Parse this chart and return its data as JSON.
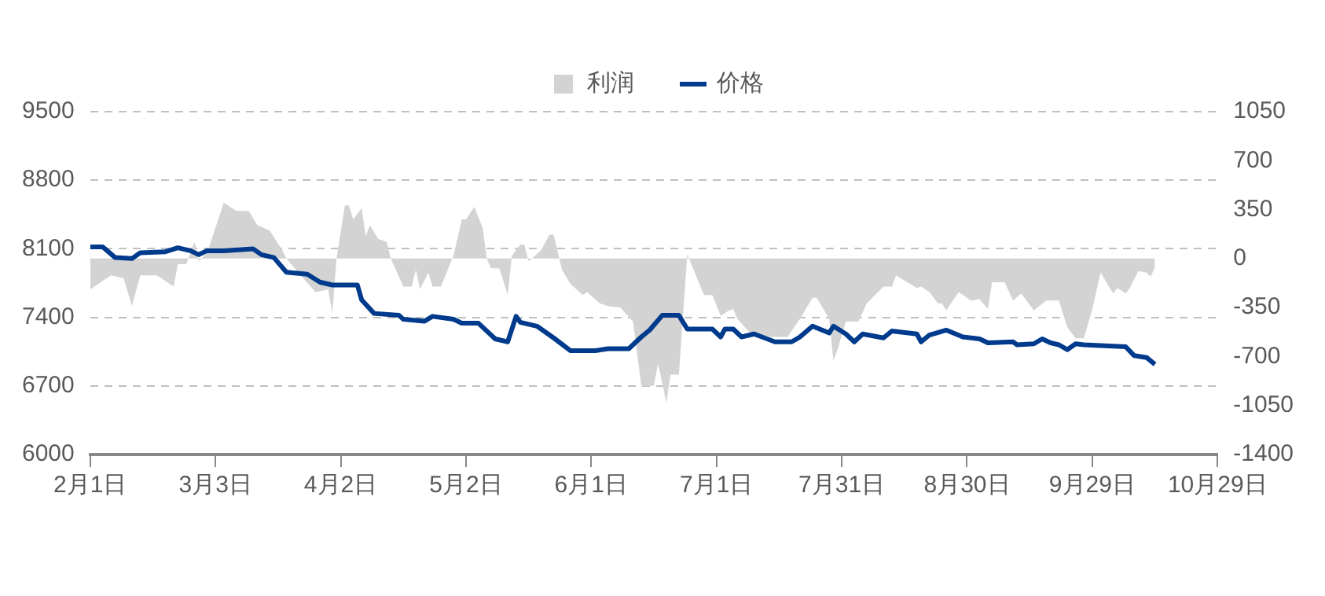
{
  "chart_data": {
    "type": "line",
    "legend": "top",
    "grid": "y",
    "marker": "none",
    "line_style": "solid",
    "xlim": [
      "--02-01",
      "--10-29"
    ],
    "xticks": [
      {
        "value": "--02-01",
        "label": "2月1日"
      },
      {
        "value": "--03-03",
        "label": "3月3日"
      },
      {
        "value": "--04-02",
        "label": "4月2日"
      },
      {
        "value": "--05-02",
        "label": "5月2日"
      },
      {
        "value": "--06-01",
        "label": "6月1日"
      },
      {
        "value": "--07-01",
        "label": "7月1日"
      },
      {
        "value": "--07-31",
        "label": "7月31日"
      },
      {
        "value": "--08-30",
        "label": "8月30日"
      },
      {
        "value": "--09-29",
        "label": "9月29日"
      },
      {
        "value": "--10-29",
        "label": "10月29日"
      }
    ],
    "ylim": [
      6000,
      9500
    ],
    "yticks": [
      6000,
      6700,
      7400,
      8100,
      8800,
      9500
    ],
    "y2lim": [
      -1400,
      1050
    ],
    "y2ticks": [
      -1400,
      -1050,
      -700,
      -350,
      0,
      350,
      700,
      1050
    ],
    "series": [
      {
        "name": "利润",
        "type": "area",
        "axis": "y2",
        "color": "#d3d3d3",
        "x": [
          "--02-01",
          "--02-02",
          "--02-04",
          "--02-06",
          "--02-09",
          "--02-11",
          "--02-13",
          "--02-17",
          "--02-21",
          "--02-22",
          "--02-24",
          "--02-26",
          "--02-27",
          "--03-01",
          "--03-03",
          "--03-05",
          "--03-08",
          "--03-11",
          "--03-13",
          "--03-16",
          "--03-19",
          "--03-20",
          "--03-24",
          "--03-27",
          "--03-30",
          "--03-31",
          "--04-01",
          "--04-03",
          "--04-04",
          "--04-05",
          "--04-07",
          "--04-08",
          "--04-09",
          "--04-11",
          "--04-13",
          "--04-14",
          "--04-17",
          "--04-19",
          "--04-20",
          "--04-21",
          "--04-23",
          "--04-24",
          "--04-26",
          "--04-29",
          "--05-01",
          "--05-02",
          "--05-04",
          "--05-06",
          "--05-07",
          "--05-08",
          "--05-10",
          "--05-12",
          "--05-13",
          "--05-15",
          "--05-16",
          "--05-17",
          "--05-20",
          "--05-22",
          "--05-23",
          "--05-25",
          "--05-27",
          "--05-30",
          "--05-31",
          "--06-03",
          "--06-05",
          "--06-08",
          "--06-11",
          "--06-13",
          "--06-16",
          "--06-17",
          "--06-19",
          "--06-20",
          "--06-22",
          "--06-24",
          "--06-28",
          "--06-30",
          "--07-02",
          "--07-04",
          "--07-05",
          "--07-06",
          "--07-09",
          "--07-14",
          "--07-18",
          "--07-21",
          "--07-24",
          "--07-25",
          "--07-28",
          "--07-29",
          "--07-30",
          "--08-01",
          "--08-04",
          "--08-06",
          "--08-10",
          "--08-12",
          "--08-13",
          "--08-18",
          "--08-19",
          "--08-21",
          "--08-23",
          "--08-24",
          "--08-25",
          "--08-28",
          "--08-31",
          "--09-02",
          "--09-04",
          "--09-05",
          "--09-08",
          "--09-10",
          "--09-12",
          "--09-15",
          "--09-18",
          "--09-21",
          "--09-23",
          "--09-25",
          "--09-27",
          "--09-29",
          "--10-01",
          "--10-04",
          "--10-05",
          "--10-07",
          "--10-08",
          "--10-10",
          "--10-12",
          "--10-13",
          "--10-14"
        ],
        "values": [
          -220,
          -200,
          -160,
          -120,
          -140,
          -340,
          -120,
          -120,
          -200,
          -40,
          -40,
          120,
          -20,
          40,
          220,
          400,
          340,
          340,
          240,
          200,
          60,
          0,
          -140,
          -240,
          -220,
          -390,
          0,
          380,
          380,
          280,
          360,
          160,
          240,
          140,
          120,
          0,
          -200,
          -200,
          -80,
          -220,
          -100,
          -200,
          -200,
          20,
          280,
          280,
          370,
          220,
          0,
          -70,
          -70,
          -260,
          20,
          100,
          100,
          -20,
          60,
          170,
          170,
          -80,
          -180,
          -260,
          -240,
          -320,
          -340,
          -350,
          -450,
          -910,
          -910,
          -750,
          -1030,
          -830,
          -830,
          30,
          -260,
          -260,
          -410,
          -370,
          -360,
          -430,
          -530,
          -560,
          -560,
          -430,
          -280,
          -280,
          -430,
          -730,
          -650,
          -450,
          -450,
          -320,
          -200,
          -200,
          -120,
          -210,
          -200,
          -240,
          -320,
          -320,
          -370,
          -240,
          -300,
          -290,
          -360,
          -170,
          -170,
          -300,
          -250,
          -370,
          -300,
          -300,
          -490,
          -570,
          -570,
          -360,
          -100,
          -250,
          -210,
          -250,
          -210,
          -90,
          -100,
          -130,
          -60
        ]
      },
      {
        "name": "价格",
        "type": "line",
        "axis": "y",
        "color": "#003a8c",
        "x": [
          "--02-01",
          "--02-04",
          "--02-07",
          "--02-11",
          "--02-13",
          "--02-19",
          "--02-22",
          "--02-25",
          "--02-27",
          "--03-01",
          "--03-05",
          "--03-12",
          "--03-14",
          "--03-17",
          "--03-20",
          "--03-25",
          "--03-28",
          "--03-31",
          "--04-06",
          "--04-07",
          "--04-10",
          "--04-16",
          "--04-17",
          "--04-22",
          "--04-24",
          "--04-29",
          "--05-01",
          "--05-05",
          "--05-09",
          "--05-12",
          "--05-14",
          "--05-15",
          "--05-19",
          "--05-23",
          "--05-27",
          "--06-02",
          "--06-05",
          "--06-10",
          "--06-13",
          "--06-15",
          "--06-18",
          "--06-22",
          "--06-24",
          "--06-30",
          "--07-02",
          "--07-03",
          "--07-05",
          "--07-07",
          "--07-10",
          "--07-15",
          "--07-19",
          "--07-21",
          "--07-24",
          "--07-28",
          "--07-29",
          "--08-01",
          "--08-03",
          "--08-05",
          "--08-10",
          "--08-12",
          "--08-18",
          "--08-19",
          "--08-21",
          "--08-25",
          "--08-29",
          "--09-02",
          "--09-04",
          "--09-10",
          "--09-11",
          "--09-15",
          "--09-17",
          "--09-19",
          "--09-21",
          "--09-23",
          "--09-25",
          "--09-27",
          "--10-07",
          "--10-09",
          "--10-12",
          "--10-14"
        ],
        "values": [
          8120,
          8120,
          8010,
          8000,
          8060,
          8070,
          8110,
          8080,
          8040,
          8080,
          8080,
          8100,
          8040,
          8010,
          7860,
          7840,
          7760,
          7730,
          7730,
          7580,
          7440,
          7420,
          7380,
          7360,
          7410,
          7380,
          7340,
          7340,
          7180,
          7150,
          7410,
          7350,
          7310,
          7190,
          7060,
          7060,
          7080,
          7080,
          7200,
          7270,
          7420,
          7420,
          7280,
          7280,
          7200,
          7280,
          7280,
          7200,
          7230,
          7150,
          7150,
          7200,
          7310,
          7240,
          7310,
          7230,
          7150,
          7230,
          7190,
          7260,
          7230,
          7150,
          7220,
          7270,
          7200,
          7180,
          7140,
          7150,
          7120,
          7130,
          7180,
          7140,
          7120,
          7070,
          7130,
          7120,
          7100,
          7010,
          6990,
          6920
        ]
      }
    ]
  }
}
